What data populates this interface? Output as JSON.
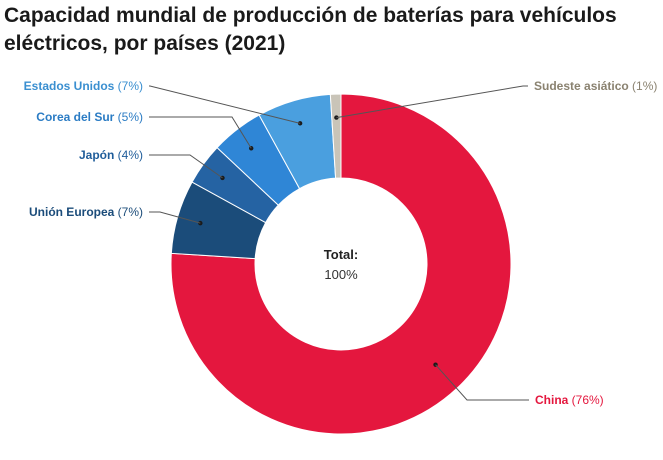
{
  "title": "Capacidad mundial de producción de baterías para vehículos eléctricos, por países (2021)",
  "center": {
    "label": "Total:",
    "value": "100%"
  },
  "chart_data": {
    "type": "pie",
    "donut": true,
    "title": "Capacidad mundial de producción de baterías para vehículos eléctricos, por países (2021)",
    "categories": [
      "China",
      "Unión Europea",
      "Japón",
      "Corea del Sur",
      "Estados Unidos",
      "Sudeste asiático"
    ],
    "values": [
      76,
      7,
      4,
      5,
      7,
      1
    ],
    "value_labels": [
      "(76%)",
      "(7%)",
      "(4%)",
      "(5%)",
      "(7%)",
      "(1%)"
    ],
    "colors": [
      "#e4173e",
      "#1b4c7a",
      "#2563a3",
      "#2f86d6",
      "#4a9fdf",
      "#c9c4b8"
    ],
    "label_colors": [
      "#e4173e",
      "#1b4c7a",
      "#1f5d9a",
      "#2b7cc4",
      "#3a8fd0",
      "#8a8270"
    ],
    "start_angle_deg": 0,
    "direction": "clockwise"
  }
}
